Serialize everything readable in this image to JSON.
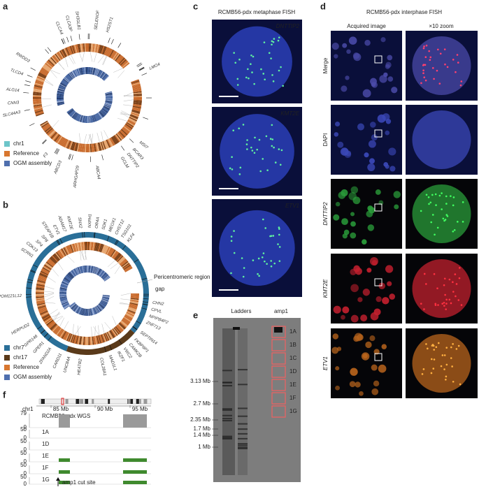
{
  "panel_a": {
    "letter": "a",
    "genes": [
      "CLCA4",
      "CLCA3P",
      "SH3GLB1",
      "SELENOF",
      "HS2ST1",
      "LMO4",
      "MSI7",
      "BCAR3",
      "DNTTIP2",
      "GCLM",
      "ABCA4",
      "ARHGAP29",
      "ABCD3",
      "F3",
      "SLC44A3",
      "CNN3",
      "ALG14",
      "TLCD4",
      "RWDD3"
    ],
    "legend": [
      "chr1",
      "Reference",
      "OGM assembly"
    ]
  },
  "panel_b": {
    "letter": "b",
    "genes": [
      "SCRN1",
      "CDK13",
      "SP4",
      "SP8",
      "STEAP1B",
      "ETV1",
      "ADAM17",
      "KMT2E",
      "SNX2",
      "NXPH1",
      "OR4A",
      "SDK1",
      "MEOX1",
      "CHST12",
      "TSG101",
      "KLF4",
      "CHN2",
      "CPVL",
      "NPIPB4P2",
      "ZNF713",
      "SEPTIN14",
      "FKBP9P1",
      "CAMK2B",
      "VWC2",
      "IKZF1",
      "MAD1L1",
      "COL28A1",
      "HEATR2",
      "UNC84A",
      "CARD11",
      "ZFAND2A",
      "GPER1",
      "GPR146",
      "HERPUD2",
      "POM121L12"
    ],
    "annotations": [
      "Pericentromeric region",
      "gap"
    ],
    "legend": [
      "chr7",
      "chr17",
      "Reference",
      "OGM assembly"
    ]
  },
  "panel_c": {
    "letter": "c",
    "title": "RCMB56-pdx metaphase FISH",
    "images": [
      "DNTTIP2",
      "KMT2E",
      "ETV1"
    ]
  },
  "panel_d": {
    "letter": "d",
    "title": "RCMB56-pdx interphase FISH",
    "columns": [
      "Acquired image",
      "×10 zoom"
    ],
    "rows": [
      "Merge",
      "DAPI",
      "DNTTIP2",
      "KMT2E",
      "ETV1"
    ]
  },
  "panel_e": {
    "letter": "e",
    "lanes": [
      "Ladders",
      "amp1"
    ],
    "ladder_sizes": [
      "3.13 Mb",
      "2.7 Mb",
      "2.35 Mb",
      "1.7 Mb",
      "1.4 Mb",
      "1 Mb"
    ],
    "bands": [
      "1A",
      "1B",
      "1C",
      "1D",
      "1E",
      "1F",
      "1G"
    ]
  },
  "panel_f": {
    "letter": "f",
    "chromosome": "chr1",
    "positions": [
      "85 Mb",
      "90 Mb",
      "95 Mb"
    ],
    "tracks": [
      {
        "name": "RCMB56-pdx WGS",
        "ymax": 79,
        "ymin": 0
      },
      {
        "name": "1A",
        "ymax": 50,
        "ymin": 0
      },
      {
        "name": "1D",
        "ymax": 50,
        "ymin": 0
      },
      {
        "name": "1E",
        "ymax": 50,
        "ymin": 0
      },
      {
        "name": "1F",
        "ymax": 50,
        "ymin": 0
      },
      {
        "name": "1G",
        "ymax": 50,
        "ymin": 0
      }
    ],
    "annotation": "amp1 cut site"
  }
}
